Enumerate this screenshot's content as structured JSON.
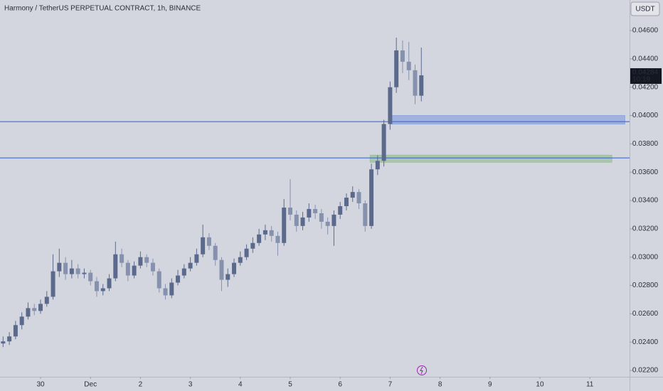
{
  "chart_data": {
    "type": "candlestick",
    "title": "Harmony / TetherUS PERPETUAL CONTRACT, 1h, BINANCE",
    "currency": "USDT",
    "last_price": 0.04284,
    "countdown": "10:19",
    "up_color": "#5b6a8c",
    "down_color": "#8692ad",
    "xlim": [
      -0.812,
      11.795
    ],
    "xticks": [
      {
        "value": 0,
        "label": "30"
      },
      {
        "value": 1,
        "label": "Dec"
      },
      {
        "value": 2,
        "label": "2"
      },
      {
        "value": 3,
        "label": "3"
      },
      {
        "value": 4,
        "label": "4"
      },
      {
        "value": 5,
        "label": "5"
      },
      {
        "value": 6,
        "label": "6"
      },
      {
        "value": 7,
        "label": "7"
      },
      {
        "value": 8,
        "label": "8"
      },
      {
        "value": 9,
        "label": "9"
      },
      {
        "value": 10,
        "label": "10"
      },
      {
        "value": 11,
        "label": "11"
      }
    ],
    "ylim": [
      0.02155,
      0.04816
    ],
    "yticks": [
      {
        "value": 0.022,
        "label": "0.02200"
      },
      {
        "value": 0.024,
        "label": "0.02400"
      },
      {
        "value": 0.026,
        "label": "0.02600"
      },
      {
        "value": 0.028,
        "label": "0.02800"
      },
      {
        "value": 0.03,
        "label": "0.03000"
      },
      {
        "value": 0.032,
        "label": "0.03200"
      },
      {
        "value": 0.034,
        "label": "0.03400"
      },
      {
        "value": 0.036,
        "label": "0.03600"
      },
      {
        "value": 0.038,
        "label": "0.03800"
      },
      {
        "value": 0.04,
        "label": "0.04000"
      },
      {
        "value": 0.042,
        "label": "0.04200"
      },
      {
        "value": 0.044,
        "label": "0.04400"
      },
      {
        "value": 0.046,
        "label": "0.04600"
      }
    ],
    "levels": [
      0.03957,
      0.03701
    ],
    "level_color": "#2f5bd3",
    "zones": [
      {
        "from_x": 7.0,
        "to_x": 11.7,
        "low": 0.0394,
        "high": 0.04,
        "color": "#8fa6dc"
      },
      {
        "from_x": 6.6,
        "to_x": 11.44,
        "low": 0.0367,
        "high": 0.0372,
        "color": "#9dbf9f"
      }
    ],
    "x": [
      -0.75,
      -0.625,
      -0.5,
      -0.375,
      -0.25,
      -0.125,
      0,
      0.125,
      0.25,
      0.375,
      0.5,
      0.625,
      0.75,
      0.875,
      1,
      1.125,
      1.25,
      1.375,
      1.5,
      1.625,
      1.75,
      1.875,
      2,
      2.125,
      2.25,
      2.375,
      2.5,
      2.625,
      2.75,
      2.875,
      3,
      3.125,
      3.25,
      3.375,
      3.5,
      3.625,
      3.75,
      3.875,
      4,
      4.125,
      4.25,
      4.375,
      4.5,
      4.625,
      4.75,
      4.875,
      5,
      5.125,
      5.25,
      5.375,
      5.5,
      5.625,
      5.75,
      5.875,
      6,
      6.125,
      6.25,
      6.375,
      6.5,
      6.625,
      6.75,
      6.875,
      7,
      7.125,
      7.25,
      7.375,
      7.5,
      7.625
    ],
    "open": [
      0.0239,
      0.02405,
      0.0244,
      0.0252,
      0.0258,
      0.0264,
      0.0262,
      0.0267,
      0.0272,
      0.029,
      0.0296,
      0.0288,
      0.0292,
      0.0288,
      0.0289,
      0.0283,
      0.0276,
      0.0278,
      0.0285,
      0.0302,
      0.0296,
      0.0287,
      0.0294,
      0.03,
      0.0296,
      0.029,
      0.0278,
      0.0273,
      0.0282,
      0.0287,
      0.0292,
      0.0296,
      0.0302,
      0.0314,
      0.0308,
      0.0298,
      0.0284,
      0.0288,
      0.0296,
      0.03,
      0.0306,
      0.031,
      0.0316,
      0.0319,
      0.0315,
      0.031,
      0.0335,
      0.033,
      0.0322,
      0.0328,
      0.0334,
      0.0331,
      0.0325,
      0.0322,
      0.033,
      0.0336,
      0.0342,
      0.0346,
      0.0338,
      0.0322,
      0.0362,
      0.0368,
      0.0394,
      0.042,
      0.0446,
      0.0438,
      0.0432,
      0.0414
    ],
    "high": [
      0.0244,
      0.0247,
      0.0255,
      0.0261,
      0.0268,
      0.0267,
      0.027,
      0.0276,
      0.0302,
      0.0306,
      0.03,
      0.0298,
      0.0295,
      0.0292,
      0.0291,
      0.0286,
      0.0281,
      0.0288,
      0.0311,
      0.0306,
      0.0298,
      0.0297,
      0.0304,
      0.0302,
      0.0299,
      0.0292,
      0.0281,
      0.0285,
      0.0291,
      0.0295,
      0.03,
      0.0306,
      0.0323,
      0.0317,
      0.031,
      0.03,
      0.0292,
      0.0299,
      0.0304,
      0.0309,
      0.0314,
      0.032,
      0.0323,
      0.0322,
      0.0318,
      0.0341,
      0.0355,
      0.0333,
      0.0332,
      0.0338,
      0.0337,
      0.0334,
      0.0328,
      0.0333,
      0.0339,
      0.0345,
      0.035,
      0.0348,
      0.034,
      0.0366,
      0.0372,
      0.0397,
      0.0424,
      0.0455,
      0.0453,
      0.0452,
      0.0436,
      0.0448
    ],
    "low": [
      0.02365,
      0.0238,
      0.0242,
      0.0249,
      0.0256,
      0.0259,
      0.026,
      0.0265,
      0.027,
      0.0286,
      0.0284,
      0.0285,
      0.0285,
      0.0285,
      0.028,
      0.0272,
      0.0273,
      0.0276,
      0.0283,
      0.0293,
      0.0283,
      0.0285,
      0.0292,
      0.0293,
      0.0287,
      0.0275,
      0.027,
      0.0271,
      0.028,
      0.0285,
      0.029,
      0.0294,
      0.03,
      0.0305,
      0.0294,
      0.0276,
      0.0279,
      0.0286,
      0.0294,
      0.0298,
      0.0303,
      0.0308,
      0.0312,
      0.0311,
      0.0301,
      0.0308,
      0.0326,
      0.0318,
      0.0319,
      0.0325,
      0.0327,
      0.032,
      0.0316,
      0.0308,
      0.0327,
      0.0333,
      0.0339,
      0.0334,
      0.0318,
      0.032,
      0.0358,
      0.0364,
      0.039,
      0.0416,
      0.043,
      0.0425,
      0.0408,
      0.041
    ],
    "close": [
      0.02405,
      0.0244,
      0.0252,
      0.0258,
      0.0264,
      0.0262,
      0.0267,
      0.0272,
      0.029,
      0.0296,
      0.0288,
      0.0292,
      0.0288,
      0.0289,
      0.0283,
      0.0276,
      0.0278,
      0.0285,
      0.0302,
      0.0296,
      0.0287,
      0.0294,
      0.03,
      0.0296,
      0.029,
      0.0278,
      0.0273,
      0.0282,
      0.0287,
      0.0292,
      0.0296,
      0.0302,
      0.0314,
      0.0308,
      0.0298,
      0.0284,
      0.0288,
      0.0296,
      0.03,
      0.0306,
      0.031,
      0.0316,
      0.0319,
      0.0315,
      0.031,
      0.0335,
      0.033,
      0.0322,
      0.0328,
      0.0334,
      0.0331,
      0.0325,
      0.0322,
      0.033,
      0.0336,
      0.0342,
      0.0346,
      0.0338,
      0.0322,
      0.0362,
      0.0368,
      0.0394,
      0.042,
      0.0446,
      0.0438,
      0.0432,
      0.0414,
      0.04284
    ]
  }
}
